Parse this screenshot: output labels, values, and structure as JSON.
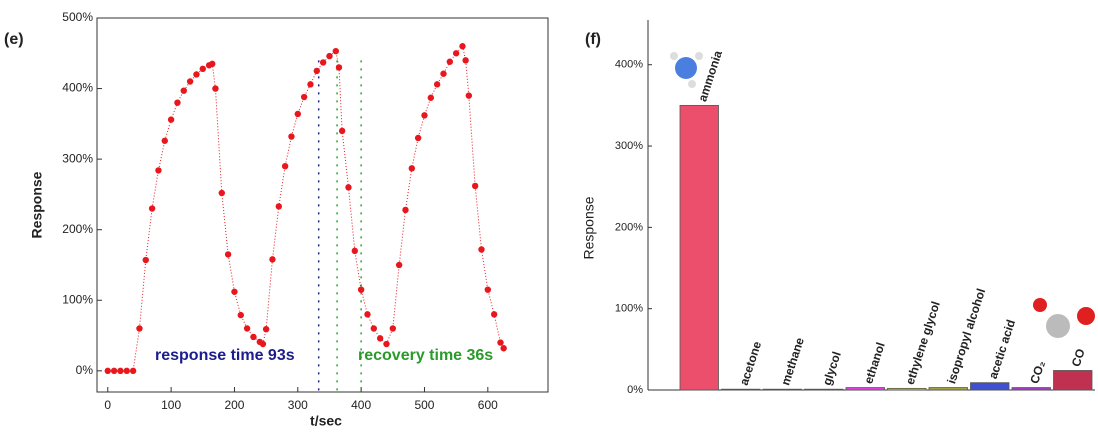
{
  "chart_data": [
    {
      "type": "line",
      "panel": "(e)",
      "x_label": "t/sec",
      "y_label": "Response",
      "color": "#e8171d",
      "x": [
        0,
        10,
        20,
        30,
        40,
        50,
        60,
        70,
        80,
        90,
        100,
        110,
        120,
        130,
        140,
        150,
        160,
        165,
        170,
        180,
        190,
        200,
        210,
        220,
        230,
        240,
        245,
        250,
        260,
        270,
        280,
        290,
        300,
        310,
        320,
        330,
        340,
        350,
        360,
        365,
        370,
        380,
        390,
        400,
        410,
        420,
        430,
        440,
        450,
        460,
        470,
        480,
        490,
        500,
        510,
        520,
        530,
        540,
        550,
        560,
        565,
        570,
        580,
        590,
        600,
        610,
        620,
        625
      ],
      "values": [
        0,
        0,
        0,
        0,
        0,
        60,
        157,
        230,
        284,
        326,
        356,
        380,
        397,
        410,
        420,
        428,
        433,
        435,
        400,
        252,
        165,
        112,
        79,
        60,
        48,
        41,
        38,
        59,
        158,
        233,
        290,
        332,
        364,
        388,
        406,
        425,
        437,
        446,
        453,
        430,
        340,
        260,
        170,
        115,
        80,
        60,
        46,
        38,
        60,
        150,
        228,
        287,
        330,
        362,
        387,
        406,
        421,
        438,
        450,
        460,
        440,
        390,
        262,
        172,
        115,
        80,
        40,
        32
      ],
      "xlim": [
        -17,
        695
      ],
      "xticks": [
        0,
        100,
        200,
        300,
        400,
        500,
        600
      ],
      "ylim": [
        -30,
        500
      ],
      "yticks": [
        {
          "value": 0,
          "label": "0%"
        },
        {
          "value": 100,
          "label": "100%"
        },
        {
          "value": 200,
          "label": "200%"
        },
        {
          "value": 300,
          "label": "300%"
        },
        {
          "value": 400,
          "label": "400%"
        },
        {
          "value": 500,
          "label": "500%"
        }
      ],
      "reference_lines": [
        {
          "x": 333,
          "color": "#1c1c9c"
        },
        {
          "x": 362,
          "color": "#2aa52a"
        },
        {
          "x": 400,
          "color": "#2aa52a"
        }
      ],
      "annotations": [
        {
          "text": "response time 93s",
          "color": "#1c1c8c"
        },
        {
          "text": "recovery time 36s",
          "color": "#2a9a2a"
        }
      ]
    },
    {
      "type": "bar",
      "panel": "(f)",
      "y_label": "Response",
      "categories": [
        "ammonia",
        "acetone",
        "methane",
        "glycol",
        "ethanol",
        "ethylene glycol",
        "isopropyl alcohol",
        "acetic acid",
        "CO₂",
        "CO"
      ],
      "values": [
        350,
        1,
        1,
        1,
        3,
        2,
        3,
        9,
        3,
        24
      ],
      "colors": [
        "#ec4f6c",
        "#2eb82e",
        "#2040c0",
        "#20b0c8",
        "#e040e0",
        "#d8c820",
        "#a0a040",
        "#4050d0",
        "#a040c0",
        "#c03050"
      ],
      "ylim": [
        0,
        455
      ],
      "yticks": [
        {
          "value": 0,
          "label": "0%"
        },
        {
          "value": 100,
          "label": "100%"
        },
        {
          "value": 200,
          "label": "200%"
        },
        {
          "value": 300,
          "label": "300%"
        },
        {
          "value": 400,
          "label": "400%"
        }
      ]
    }
  ]
}
